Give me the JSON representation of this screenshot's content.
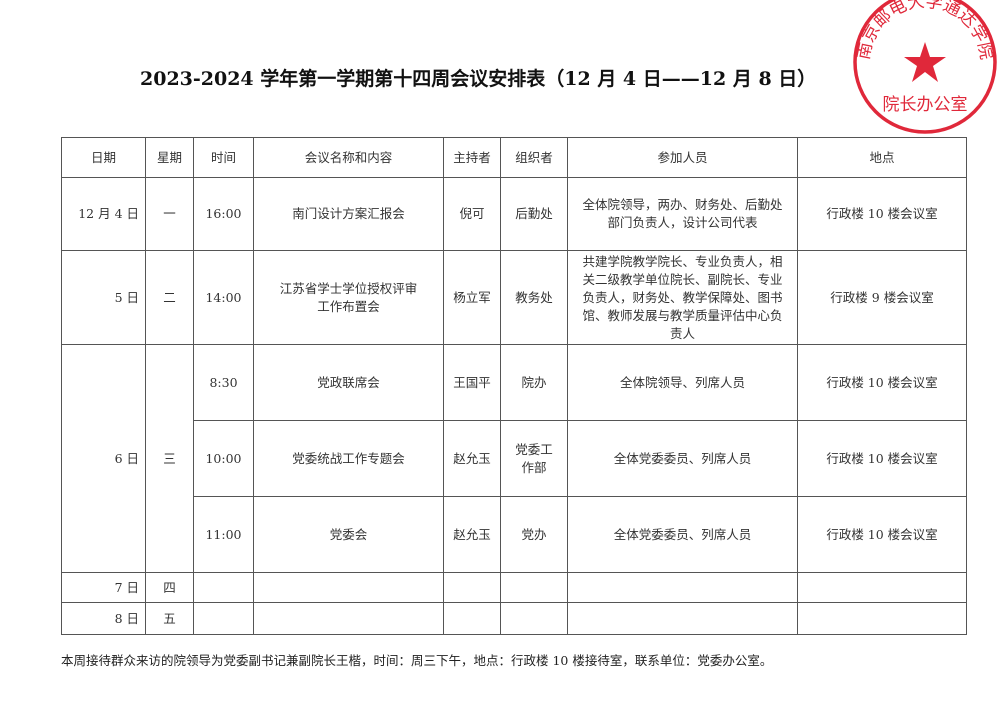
{
  "title": "2023-2024 学年第一学期第十四周会议安排表（12 月 4 日——12 月 8 日）",
  "stamp": {
    "outer_text": "南京邮电大学通达学院",
    "inner_text": "院长办公室",
    "color": "#e0283a",
    "icon": "star-icon"
  },
  "table": {
    "headers": [
      "日期",
      "星期",
      "时间",
      "会议名称和内容",
      "主持者",
      "组织者",
      "参加人员",
      "地点"
    ],
    "rows": [
      {
        "date": "12 月 4 日",
        "weekday": "一",
        "time": "16:00",
        "meeting": "南门设计方案汇报会",
        "host": "倪可",
        "organizer": "后勤处",
        "attendees": "全体院领导，两办、财务处、后勤处部门负责人，设计公司代表",
        "location": "行政楼 10 楼会议室"
      },
      {
        "date": "5 日",
        "weekday": "二",
        "time": "14:00",
        "meeting": "江苏省学士学位授权评审工作布置会",
        "host": "杨立军",
        "organizer": "教务处",
        "attendees": "共建学院教学院长、专业负责人，相关二级教学单位院长、副院长、专业负责人，财务处、教学保障处、图书馆、教师发展与教学质量评估中心负责人",
        "location": "行政楼 9 楼会议室"
      },
      {
        "date": "6 日",
        "weekday": "三",
        "time": "8:30",
        "meeting": "党政联席会",
        "host": "王国平",
        "organizer": "院办",
        "attendees": "全体院领导、列席人员",
        "location": "行政楼 10 楼会议室"
      },
      {
        "time": "10:00",
        "meeting": "党委统战工作专题会",
        "host": "赵允玉",
        "organizer": "党委工作部",
        "attendees": "全体党委委员、列席人员",
        "location": "行政楼 10 楼会议室"
      },
      {
        "time": "11:00",
        "meeting": "党委会",
        "host": "赵允玉",
        "organizer": "党办",
        "attendees": "全体党委委员、列席人员",
        "location": "行政楼 10 楼会议室"
      },
      {
        "date": "7 日",
        "weekday": "四"
      },
      {
        "date": "8 日",
        "weekday": "五"
      }
    ]
  },
  "note": "本周接待群众来访的院领导为党委副书记兼副院长王楷，时间：周三下午，地点：行政楼 10 楼接待室，联系单位：党委办公室。"
}
